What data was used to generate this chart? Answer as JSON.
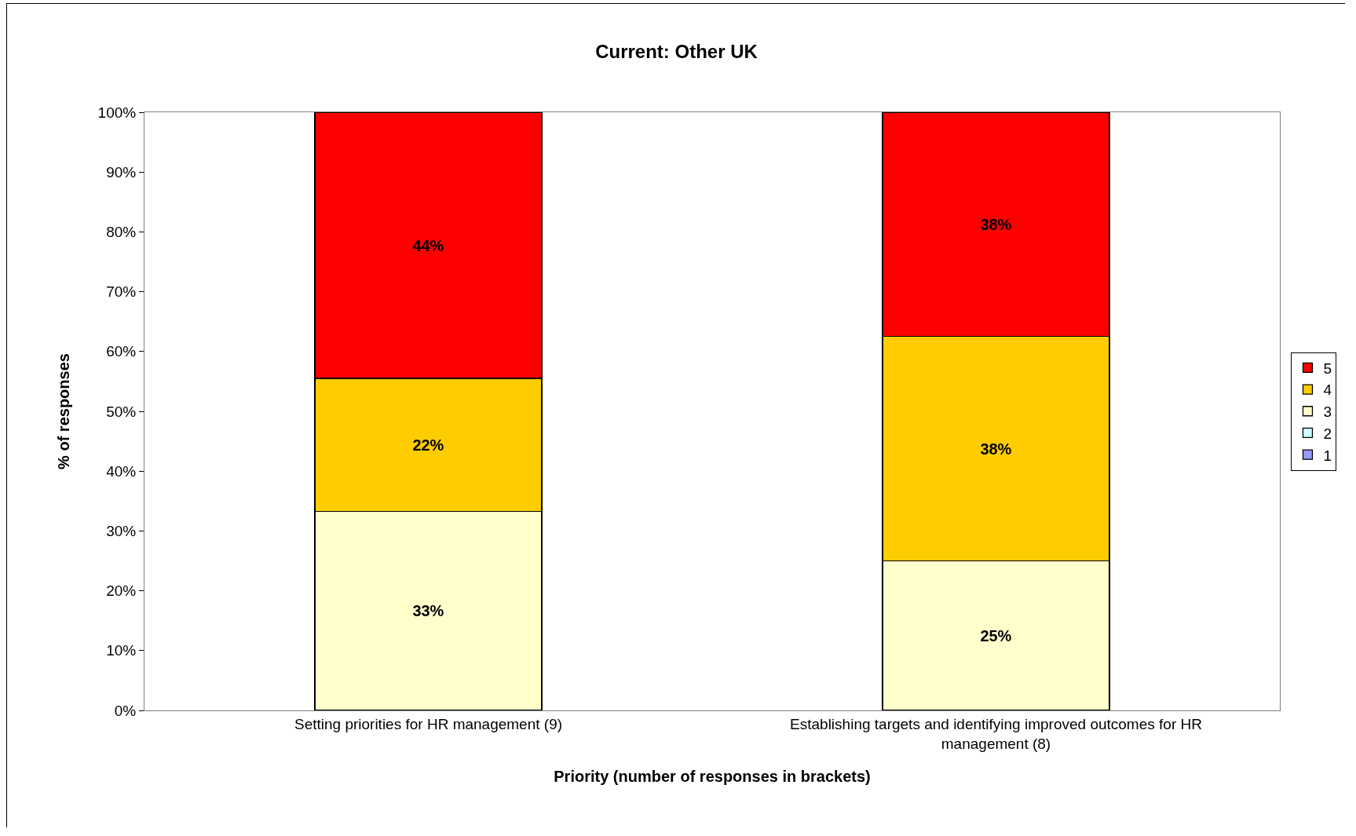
{
  "chart_data": {
    "type": "bar",
    "title": "Current: Other UK",
    "xlabel": "Priority (number of responses in brackets)",
    "ylabel": "% of responses",
    "categories": [
      "Setting priorities for HR management (9)",
      "Establishing targets and identifying improved outcomes for HR management (8)"
    ],
    "stacked": true,
    "legend": "right",
    "grid": false,
    "ylim": [
      0,
      100
    ],
    "yticks": [
      {
        "value": 0,
        "label": "0%"
      },
      {
        "value": 10,
        "label": "10%"
      },
      {
        "value": 20,
        "label": "20%"
      },
      {
        "value": 30,
        "label": "30%"
      },
      {
        "value": 40,
        "label": "40%"
      },
      {
        "value": 50,
        "label": "50%"
      },
      {
        "value": 60,
        "label": "60%"
      },
      {
        "value": 70,
        "label": "70%"
      },
      {
        "value": 80,
        "label": "80%"
      },
      {
        "value": 90,
        "label": "90%"
      },
      {
        "value": 100,
        "label": "100%"
      }
    ],
    "series": [
      {
        "name": "1",
        "color": "#9999ff",
        "values": [
          0,
          0
        ],
        "value_labels": [
          null,
          null
        ]
      },
      {
        "name": "2",
        "color": "#ccffff",
        "values": [
          0,
          0
        ],
        "value_labels": [
          null,
          null
        ]
      },
      {
        "name": "3",
        "color": "#ffffcc",
        "values": [
          33.3,
          25
        ],
        "value_labels": [
          "33%",
          "25%"
        ]
      },
      {
        "name": "4",
        "color": "#ffcc00",
        "values": [
          22.2,
          37.5
        ],
        "value_labels": [
          "22%",
          "38%"
        ]
      },
      {
        "name": "5",
        "color": "#ff0000",
        "values": [
          44.4,
          37.5
        ],
        "value_labels": [
          "44%",
          "38%"
        ]
      }
    ]
  }
}
